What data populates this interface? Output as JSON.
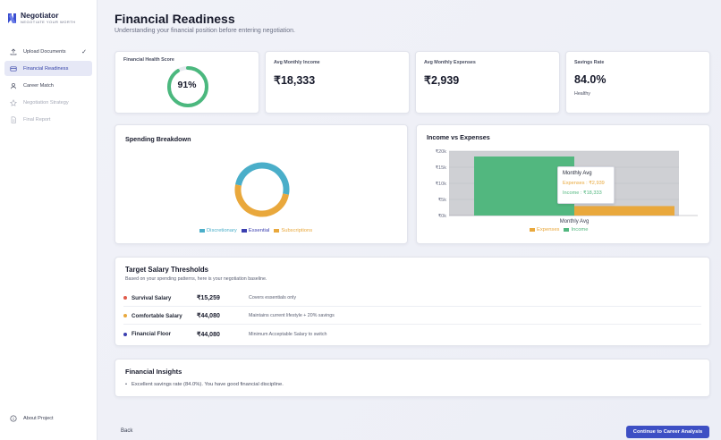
{
  "brand": {
    "name": "Negotiator",
    "tagline": "NEGOTIATE YOUR WORTH"
  },
  "nav": [
    {
      "label": "Upload Documents",
      "icon": "upload-icon",
      "state": "done",
      "check": "✓"
    },
    {
      "label": "Financial Readiness",
      "icon": "card-icon",
      "state": "active"
    },
    {
      "label": "Career Match",
      "icon": "user-icon",
      "state": "normal"
    },
    {
      "label": "Negotiation Strategy",
      "icon": "star-icon",
      "state": "disabled"
    },
    {
      "label": "Final Report",
      "icon": "document-icon",
      "state": "disabled"
    }
  ],
  "about": {
    "label": "About Project",
    "icon": "info-icon"
  },
  "page": {
    "title": "Financial Readiness",
    "subtitle": "Understanding your financial position before entering negotiation."
  },
  "stats": {
    "health": {
      "label": "Financial Health Score",
      "value": "91%",
      "score": 0.91,
      "color": "#4bb87e"
    },
    "income": {
      "label": "Avg Monthly Income",
      "value": "₹18,333"
    },
    "expenses": {
      "label": "Avg Monthly Expenses",
      "value": "₹2,939"
    },
    "savings": {
      "label": "Savings Rate",
      "value": "84.0%",
      "note": "Healthy"
    }
  },
  "spending": {
    "title": "Spending Breakdown",
    "legend": [
      {
        "label": "Discretionary",
        "color": "#4aaec9"
      },
      {
        "label": "Essential",
        "color": "#3b3fb0"
      },
      {
        "label": "Subscriptions",
        "color": "#e9a83c"
      }
    ],
    "chart_data": {
      "type": "pie",
      "labels": [
        "Discretionary",
        "Essential",
        "Subscriptions"
      ],
      "values": [
        0.5,
        0.0,
        0.5
      ],
      "colors": [
        "#4aaec9",
        "#3b3fb0",
        "#e9a83c"
      ]
    }
  },
  "income_vs_expenses": {
    "title": "Income vs Expenses",
    "xtick": "Monthly Avg",
    "yticks": [
      "₹20k",
      "₹15k",
      "₹10k",
      "₹5k",
      "₹0k"
    ],
    "legend": [
      {
        "label": "Expenses",
        "color": "#e9a83c"
      },
      {
        "label": "Income",
        "color": "#52b77f"
      }
    ],
    "tooltip": {
      "title": "Monthly Avg",
      "expenses": "Expenses : ₹2,939",
      "income": "Income : ₹18,333"
    },
    "chart_data": {
      "type": "bar",
      "categories": [
        "Monthly Avg"
      ],
      "series": [
        {
          "name": "Income",
          "values": [
            18333
          ],
          "color": "#52b77f"
        },
        {
          "name": "Expenses",
          "values": [
            2939
          ],
          "color": "#e9a83c"
        }
      ],
      "ylim": [
        0,
        20000
      ]
    }
  },
  "thresholds": {
    "title": "Target Salary Thresholds",
    "subtitle": "Based on your spending patterns, here is your negotiation baseline.",
    "rows": [
      {
        "name": "Survival Salary",
        "amount": "₹15,259",
        "desc": "Covers essentials only",
        "color": "#e05a4a"
      },
      {
        "name": "Comfortable Salary",
        "amount": "₹44,080",
        "desc": "Maintains current lifestyle + 20% savings",
        "color": "#e9a83c"
      },
      {
        "name": "Financial Floor",
        "amount": "₹44,080",
        "desc": "Minimum Acceptable Salary to switch",
        "color": "#3b3fb0"
      }
    ]
  },
  "insights": {
    "title": "Financial Insights",
    "items": [
      "Excellent savings rate (84.0%). You have good financial discipline."
    ]
  },
  "footer": {
    "back": "Back",
    "next": "Continue to Career Analysis"
  }
}
